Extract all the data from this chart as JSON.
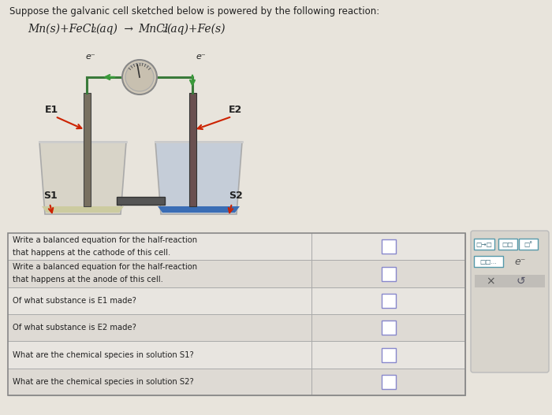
{
  "background_color": "#e8e4dc",
  "title_text": "Suppose the galvanic cell sketched below is powered by the following reaction:",
  "reaction_line1": "Mn(s)+FeCl",
  "reaction_line2": "(aq)",
  "reaction_arrow": " → ",
  "reaction_line3": "MnCl",
  "reaction_line4": "(aq)+Fe(s)",
  "electrode1_label": "E1",
  "electrode2_label": "E2",
  "solution1_label": "S1",
  "solution2_label": "S2",
  "electron_label": "e⁻",
  "beaker1_solution_color": "#cccba0",
  "beaker2_solution_color": "#3a6db5",
  "beaker1_glass_color": "#d8d4c8",
  "beaker2_glass_color": "#c5cdd8",
  "beaker_edge_color": "#999999",
  "wire_color": "#3a7a3a",
  "arrow_color": "#cc2200",
  "electron_arrow_color": "#3a9a3a",
  "table_rows": [
    "Write a balanced equation for the half-reaction\nthat happens at the cathode of this cell.",
    "Write a balanced equation for the half-reaction\nthat happens at the anode of this cell.",
    "Of what substance is E1 made?",
    "Of what substance is E2 made?",
    "What are the chemical species in solution S1?",
    "What are the chemical species in solution S2?"
  ],
  "panel_bg": "#d8d4cc",
  "panel_btn_bg": "#ffffff",
  "table_bg": "#e8e4dc",
  "cell_bg": "#dcdcd8",
  "table_border": "#aaaaaa",
  "text_color": "#222222",
  "voltmeter_color": "#d0c8b8",
  "electrode1_color": "#787060",
  "electrode2_color": "#6a5050",
  "salt_bridge_color": "#555555"
}
